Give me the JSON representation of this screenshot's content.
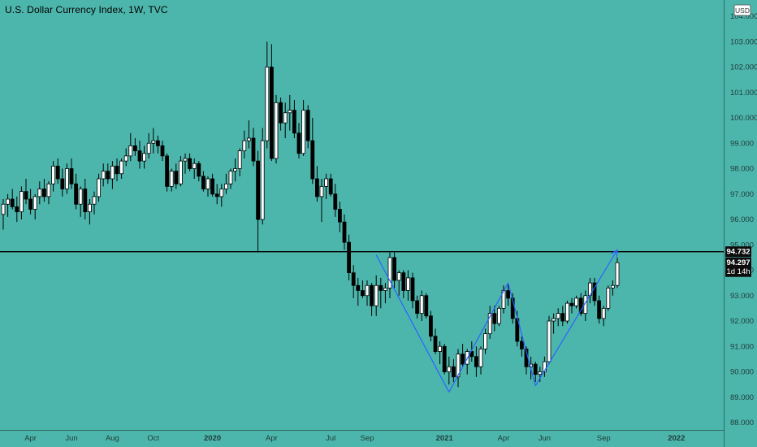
{
  "header": {
    "title": "U.S. Dollar Currency Index, 1W, TVC"
  },
  "currency_label": "USD",
  "tags": {
    "resistance": "94.732",
    "last": "94.297",
    "countdown": "1d 14h"
  },
  "colors": {
    "background": "#4db6ac",
    "candle_up": "#ffffff",
    "candle_down": "#000000",
    "wick": "#000000",
    "pattern_line": "#2962ff",
    "horizontal_line": "#000000"
  },
  "chart_data": {
    "type": "candlestick",
    "title": "U.S. Dollar Currency Index, 1W, TVC",
    "timeframe": "1W",
    "ylim": [
      88.0,
      104.0
    ],
    "y_ticks": [
      "88.000",
      "89.000",
      "90.000",
      "91.000",
      "92.000",
      "93.000",
      "94.000",
      "95.000",
      "96.000",
      "97.000",
      "98.000",
      "99.000",
      "100.000",
      "101.000",
      "102.000",
      "103.000",
      "104.000"
    ],
    "x_ticks": [
      {
        "label": "Apr",
        "week": 6
      },
      {
        "label": "Jun",
        "week": 15
      },
      {
        "label": "Aug",
        "week": 24
      },
      {
        "label": "Oct",
        "week": 33
      },
      {
        "label": "2020",
        "week": 46
      },
      {
        "label": "Apr",
        "week": 59
      },
      {
        "label": "Jul",
        "week": 72
      },
      {
        "label": "Sep",
        "week": 80
      },
      {
        "label": "2021",
        "week": 97
      },
      {
        "label": "Apr",
        "week": 110
      },
      {
        "label": "Jun",
        "week": 119
      },
      {
        "label": "Sep",
        "week": 132
      },
      {
        "label": "2022",
        "week": 148
      }
    ],
    "total_weeks": 152,
    "horizontal_line": 94.73,
    "candles": [
      [
        96.2,
        96.8,
        95.6,
        96.6
      ],
      [
        96.6,
        97.0,
        96.1,
        96.8
      ],
      [
        96.8,
        97.2,
        96.4,
        96.5
      ],
      [
        96.5,
        96.9,
        95.9,
        96.3
      ],
      [
        96.3,
        97.3,
        96.0,
        97.1
      ],
      [
        97.1,
        97.6,
        96.6,
        96.8
      ],
      [
        96.8,
        97.2,
        96.2,
        96.4
      ],
      [
        96.4,
        97.0,
        96.0,
        96.9
      ],
      [
        96.9,
        97.5,
        96.6,
        97.2
      ],
      [
        97.2,
        97.6,
        96.7,
        96.9
      ],
      [
        96.9,
        97.5,
        96.6,
        97.4
      ],
      [
        97.4,
        98.3,
        97.1,
        98.1
      ],
      [
        98.1,
        98.4,
        97.4,
        97.6
      ],
      [
        97.6,
        98.0,
        96.9,
        97.2
      ],
      [
        97.2,
        98.2,
        97.0,
        98.0
      ],
      [
        98.0,
        98.4,
        97.2,
        97.4
      ],
      [
        97.4,
        97.8,
        96.4,
        96.6
      ],
      [
        96.6,
        97.3,
        96.1,
        97.2
      ],
      [
        97.2,
        97.6,
        96.0,
        96.3
      ],
      [
        96.3,
        96.8,
        95.8,
        96.6
      ],
      [
        96.6,
        97.1,
        96.2,
        96.9
      ],
      [
        96.9,
        97.8,
        96.7,
        97.6
      ],
      [
        97.6,
        98.2,
        97.3,
        97.9
      ],
      [
        97.9,
        98.2,
        97.4,
        97.6
      ],
      [
        97.6,
        98.3,
        97.2,
        98.1
      ],
      [
        98.1,
        98.4,
        97.5,
        97.8
      ],
      [
        97.8,
        98.4,
        97.6,
        98.3
      ],
      [
        98.3,
        98.8,
        98.1,
        98.5
      ],
      [
        98.5,
        99.4,
        98.3,
        98.9
      ],
      [
        98.9,
        99.2,
        98.5,
        98.7
      ],
      [
        98.7,
        99.1,
        98.0,
        98.3
      ],
      [
        98.3,
        98.9,
        98.0,
        98.6
      ],
      [
        98.6,
        99.4,
        98.4,
        99.0
      ],
      [
        99.0,
        99.6,
        98.6,
        99.1
      ],
      [
        99.1,
        99.3,
        98.6,
        98.9
      ],
      [
        98.9,
        99.1,
        98.3,
        98.5
      ],
      [
        98.5,
        98.6,
        97.1,
        97.3
      ],
      [
        97.3,
        98.0,
        97.1,
        97.9
      ],
      [
        97.9,
        98.2,
        97.2,
        97.4
      ],
      [
        97.4,
        98.5,
        97.3,
        98.3
      ],
      [
        98.3,
        98.6,
        97.8,
        98.4
      ],
      [
        98.4,
        98.6,
        97.9,
        98.0
      ],
      [
        98.0,
        98.4,
        97.6,
        98.2
      ],
      [
        98.2,
        98.3,
        97.5,
        97.7
      ],
      [
        97.7,
        97.9,
        97.1,
        97.2
      ],
      [
        97.2,
        97.7,
        96.9,
        97.6
      ],
      [
        97.6,
        97.8,
        96.9,
        97.0
      ],
      [
        97.0,
        97.4,
        96.6,
        96.9
      ],
      [
        96.9,
        97.4,
        96.5,
        97.2
      ],
      [
        97.2,
        97.8,
        97.0,
        97.4
      ],
      [
        97.4,
        98.0,
        97.2,
        97.9
      ],
      [
        97.9,
        98.4,
        97.5,
        98.0
      ],
      [
        98.0,
        98.8,
        97.7,
        98.7
      ],
      [
        98.7,
        99.5,
        98.4,
        99.1
      ],
      [
        99.1,
        99.9,
        98.8,
        99.2
      ],
      [
        99.2,
        99.6,
        98.1,
        98.3
      ],
      [
        98.3,
        98.7,
        94.7,
        96.0
      ],
      [
        96.0,
        99.6,
        95.8,
        99.1
      ],
      [
        99.1,
        103.0,
        98.8,
        102.0
      ],
      [
        102.0,
        102.9,
        98.3,
        98.4
      ],
      [
        98.4,
        100.9,
        98.2,
        100.6
      ],
      [
        100.6,
        100.8,
        99.5,
        99.8
      ],
      [
        99.8,
        100.6,
        99.2,
        100.2
      ],
      [
        100.2,
        100.9,
        99.5,
        100.3
      ],
      [
        100.3,
        100.7,
        99.2,
        99.4
      ],
      [
        99.4,
        99.8,
        98.4,
        98.6
      ],
      [
        98.6,
        100.7,
        98.5,
        100.3
      ],
      [
        100.3,
        100.5,
        98.8,
        99.1
      ],
      [
        99.1,
        100.0,
        97.4,
        97.6
      ],
      [
        97.6,
        98.1,
        96.7,
        96.9
      ],
      [
        96.9,
        97.6,
        95.9,
        97.3
      ],
      [
        97.3,
        97.8,
        96.8,
        97.6
      ],
      [
        97.6,
        97.8,
        96.9,
        97.0
      ],
      [
        97.0,
        97.4,
        96.1,
        96.4
      ],
      [
        96.4,
        96.7,
        95.5,
        95.9
      ],
      [
        95.9,
        96.2,
        94.8,
        95.1
      ],
      [
        95.1,
        95.4,
        93.6,
        93.9
      ],
      [
        93.9,
        94.2,
        92.9,
        93.4
      ],
      [
        93.4,
        93.7,
        92.6,
        93.2
      ],
      [
        93.2,
        93.6,
        92.9,
        93.0
      ],
      [
        93.0,
        93.6,
        92.6,
        93.4
      ],
      [
        93.4,
        93.5,
        92.2,
        92.6
      ],
      [
        92.6,
        93.8,
        92.2,
        93.4
      ],
      [
        93.4,
        93.7,
        92.5,
        93.2
      ],
      [
        93.2,
        93.5,
        92.7,
        93.3
      ],
      [
        93.3,
        94.7,
        92.9,
        94.5
      ],
      [
        94.5,
        94.7,
        93.3,
        93.6
      ],
      [
        93.6,
        94.0,
        93.0,
        93.9
      ],
      [
        93.9,
        94.0,
        92.9,
        93.2
      ],
      [
        93.2,
        94.0,
        92.8,
        93.7
      ],
      [
        93.7,
        93.9,
        92.5,
        92.8
      ],
      [
        92.8,
        93.0,
        92.1,
        92.3
      ],
      [
        92.3,
        93.2,
        92.0,
        93.0
      ],
      [
        93.0,
        93.1,
        92.1,
        92.2
      ],
      [
        92.2,
        92.4,
        91.2,
        91.4
      ],
      [
        91.4,
        91.7,
        90.7,
        90.8
      ],
      [
        90.8,
        91.2,
        90.3,
        91.0
      ],
      [
        91.0,
        91.1,
        89.9,
        90.0
      ],
      [
        90.0,
        90.6,
        89.5,
        90.2
      ],
      [
        90.2,
        90.5,
        89.6,
        89.8
      ],
      [
        89.8,
        90.9,
        89.4,
        90.7
      ],
      [
        90.7,
        91.1,
        90.2,
        90.3
      ],
      [
        90.3,
        90.9,
        89.9,
        90.8
      ],
      [
        90.8,
        91.2,
        90.4,
        90.6
      ],
      [
        90.6,
        91.0,
        89.8,
        90.2
      ],
      [
        90.2,
        91.0,
        89.9,
        90.9
      ],
      [
        90.9,
        91.7,
        90.7,
        91.5
      ],
      [
        91.5,
        92.6,
        91.3,
        92.3
      ],
      [
        92.3,
        92.6,
        91.6,
        91.9
      ],
      [
        91.9,
        92.6,
        91.8,
        92.5
      ],
      [
        92.5,
        93.4,
        92.3,
        93.2
      ],
      [
        93.2,
        93.5,
        92.6,
        92.9
      ],
      [
        92.9,
        93.1,
        91.9,
        92.1
      ],
      [
        92.1,
        92.4,
        91.0,
        91.2
      ],
      [
        91.2,
        91.4,
        90.6,
        90.9
      ],
      [
        90.9,
        91.0,
        89.9,
        90.2
      ],
      [
        90.2,
        90.6,
        89.7,
        90.3
      ],
      [
        90.3,
        90.4,
        89.6,
        89.9
      ],
      [
        89.9,
        90.2,
        89.6,
        90.0
      ],
      [
        90.0,
        90.6,
        89.8,
        90.4
      ],
      [
        90.4,
        92.2,
        90.3,
        92.0
      ],
      [
        92.0,
        92.3,
        91.5,
        92.1
      ],
      [
        92.1,
        92.5,
        91.8,
        92.3
      ],
      [
        92.3,
        92.6,
        91.8,
        92.0
      ],
      [
        92.0,
        92.8,
        91.9,
        92.7
      ],
      [
        92.7,
        92.9,
        92.3,
        92.6
      ],
      [
        92.6,
        93.0,
        92.5,
        92.9
      ],
      [
        92.9,
        93.1,
        92.2,
        92.3
      ],
      [
        92.3,
        93.2,
        92.0,
        93.0
      ],
      [
        93.0,
        93.7,
        92.7,
        93.5
      ],
      [
        93.5,
        93.7,
        92.6,
        92.8
      ],
      [
        92.8,
        93.0,
        91.9,
        92.1
      ],
      [
        92.1,
        92.6,
        91.8,
        92.5
      ],
      [
        92.5,
        93.4,
        92.4,
        93.3
      ],
      [
        93.3,
        93.6,
        93.0,
        93.4
      ],
      [
        93.4,
        94.5,
        93.3,
        94.3
      ]
    ],
    "pattern_points": [
      [
        82,
        94.6
      ],
      [
        98,
        89.2
      ],
      [
        111,
        93.5
      ],
      [
        117,
        89.45
      ],
      [
        135,
        94.8
      ]
    ],
    "last_price": 94.297,
    "resistance": 94.732
  }
}
